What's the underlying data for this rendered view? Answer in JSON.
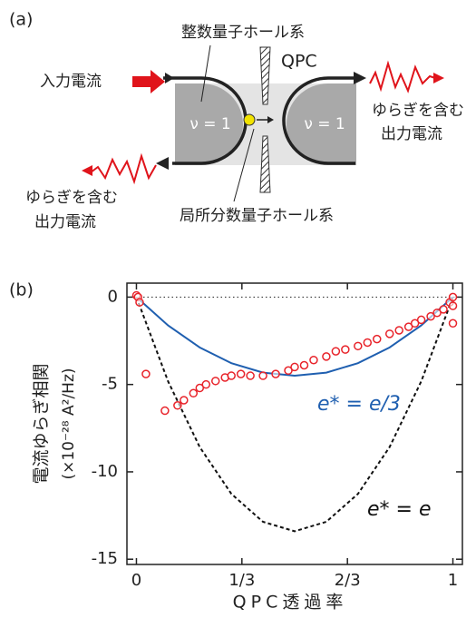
{
  "panel_a": {
    "label": "(a)",
    "integer_qh": "整数量子ホール系",
    "qpc": "QPC",
    "input_current": "入力電流",
    "output_current_right": [
      "ゆらぎを含む",
      "出力電流"
    ],
    "output_current_left": [
      "ゆらぎを含む",
      "出力電流"
    ],
    "nu_left": "ν = 1",
    "nu_right": "ν = 1",
    "local_fractional_qh": "局所分数量子ホール系"
  },
  "chart_data": {
    "type": "scatter",
    "panel_label": "(b)",
    "ylabel": [
      "電流ゆらぎ相関",
      "(×10⁻²⁸ A²/Hz)"
    ],
    "xlabel": "QPC透過率",
    "xlim": [
      -0.03,
      1.03
    ],
    "ylim": [
      -15.3,
      0.8
    ],
    "xticks": [
      0,
      {
        "value": 0.3333,
        "label": "1/3"
      },
      {
        "value": 0.6667,
        "label": "2/3"
      },
      1
    ],
    "yticks": [
      0,
      -5,
      -10,
      -15
    ],
    "series": [
      {
        "type": "scatter",
        "color": "#e8232a",
        "x": [
          0.0,
          0.005,
          0.01,
          0.03,
          0.09,
          0.13,
          0.15,
          0.18,
          0.2,
          0.22,
          0.25,
          0.28,
          0.3,
          0.33,
          0.36,
          0.4,
          0.44,
          0.48,
          0.5,
          0.53,
          0.56,
          0.6,
          0.63,
          0.66,
          0.7,
          0.73,
          0.76,
          0.8,
          0.83,
          0.86,
          0.88,
          0.9,
          0.93,
          0.95,
          0.97,
          0.99,
          1.0,
          1.0,
          1.0
        ],
        "values": [
          0.1,
          0.0,
          -0.3,
          -4.4,
          -6.5,
          -6.2,
          -5.9,
          -5.5,
          -5.2,
          -5.0,
          -4.8,
          -4.6,
          -4.5,
          -4.4,
          -4.5,
          -4.5,
          -4.4,
          -4.2,
          -4.0,
          -3.9,
          -3.6,
          -3.4,
          -3.1,
          -3.0,
          -2.8,
          -2.6,
          -2.4,
          -2.1,
          -1.9,
          -1.7,
          -1.5,
          -1.3,
          -1.1,
          -0.9,
          -0.7,
          -0.3,
          0.0,
          -0.5,
          -1.5
        ]
      },
      {
        "type": "line",
        "name": "e* = e/3",
        "color": "#1f5fb0",
        "dashed": false,
        "x": [
          0,
          0.1,
          0.2,
          0.3,
          0.4,
          0.5,
          0.6,
          0.7,
          0.8,
          0.9,
          1
        ],
        "values": [
          0,
          -1.62,
          -2.88,
          -3.78,
          -4.32,
          -4.5,
          -4.32,
          -3.78,
          -2.88,
          -1.62,
          0
        ]
      },
      {
        "type": "line",
        "name": "e* = e",
        "color": "#111111",
        "dashed": true,
        "x": [
          0,
          0.1,
          0.2,
          0.3,
          0.4,
          0.5,
          0.6,
          0.7,
          0.8,
          0.9,
          1
        ],
        "values": [
          0,
          -4.82,
          -8.58,
          -11.26,
          -12.86,
          -13.4,
          -12.86,
          -11.26,
          -8.58,
          -4.82,
          0
        ]
      }
    ]
  }
}
